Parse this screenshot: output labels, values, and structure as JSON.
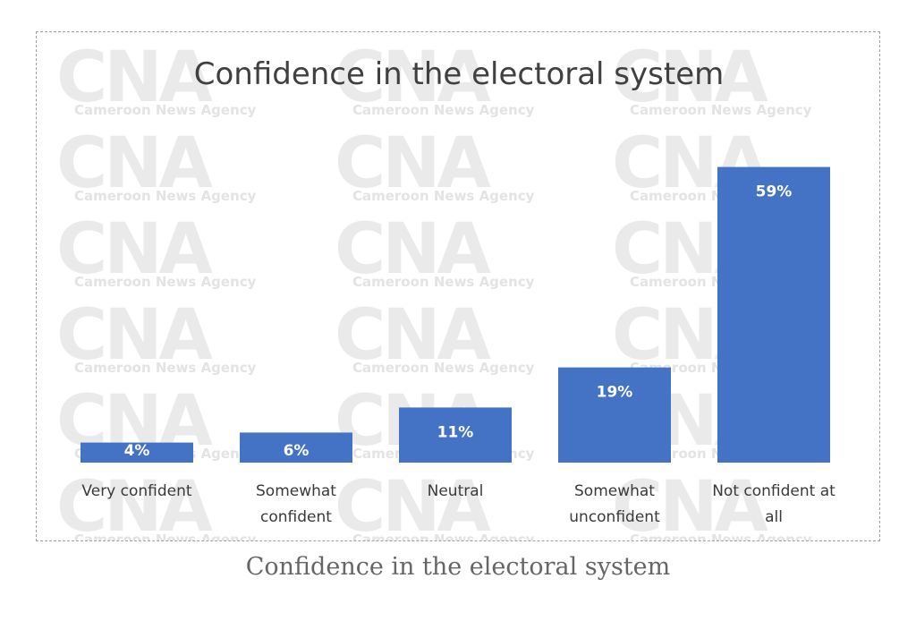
{
  "chart_data": {
    "type": "bar",
    "title": "Confidence in the electoral system",
    "categories": [
      "Very confident",
      "Somewhat confident",
      "Neutral",
      "Somewhat unconfident",
      "Not confident at all"
    ],
    "category_lines": [
      [
        "Very confident"
      ],
      [
        "Somewhat",
        "confident"
      ],
      [
        "Neutral"
      ],
      [
        "Somewhat",
        "unconfident"
      ],
      [
        "Not confident at",
        "all"
      ]
    ],
    "values": [
      4,
      6,
      11,
      19,
      59
    ],
    "data_labels": [
      "4%",
      "6%",
      "11%",
      "19%",
      "59%"
    ],
    "unit": "%",
    "ylim": [
      0,
      65
    ],
    "grid": false,
    "legend": "none",
    "bar_color": "#4472c4"
  },
  "watermark": {
    "logo": "CNA",
    "text": "Cameroon News Agency"
  },
  "caption": "Confidence in the electoral system"
}
